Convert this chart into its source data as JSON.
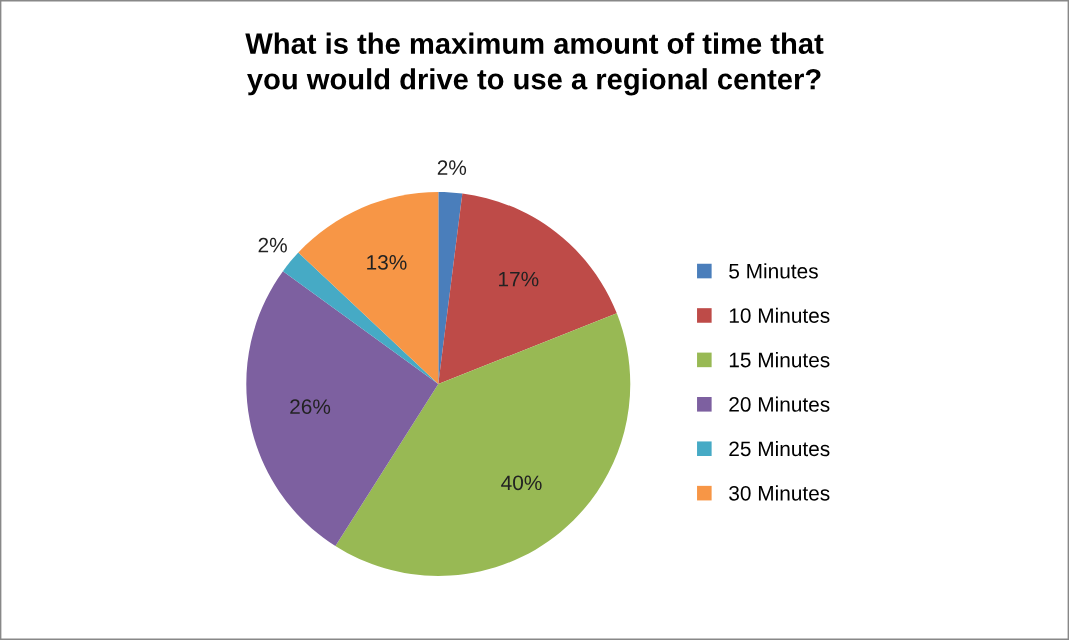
{
  "chart_data": {
    "type": "pie",
    "title": "What is the maximum amount of time that you would drive to use a regional center?",
    "categories": [
      "5 Minutes",
      "10 Minutes",
      "15 Minutes",
      "20 Minutes",
      "25 Minutes",
      "30 Minutes"
    ],
    "values": [
      2,
      17,
      40,
      26,
      2,
      13
    ],
    "value_labels": [
      "2%",
      "17%",
      "40%",
      "26%",
      "2%",
      "13%"
    ],
    "colors": [
      "#4a7ebb",
      "#be4b48",
      "#98b954",
      "#7d60a0",
      "#46aac5",
      "#f79646"
    ],
    "legend": "right"
  }
}
